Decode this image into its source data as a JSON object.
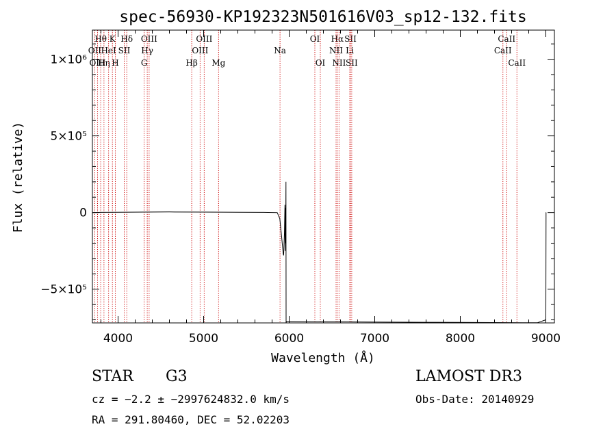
{
  "chart_data": {
    "type": "line",
    "title": "spec-56930-KP192323N501616V03_sp12-132.fits",
    "xlabel": "Wavelength (Å)",
    "ylabel": "Flux (relative)",
    "xlim": [
      3700,
      9100
    ],
    "ylim": [
      -720000,
      1190000
    ],
    "x_ticks": [
      {
        "value": 4000,
        "label": "4000"
      },
      {
        "value": 5000,
        "label": "5000"
      },
      {
        "value": 6000,
        "label": "6000"
      },
      {
        "value": 7000,
        "label": "7000"
      },
      {
        "value": 8000,
        "label": "8000"
      },
      {
        "value": 9000,
        "label": "9000"
      }
    ],
    "y_ticks": [
      {
        "value": 1000000,
        "label": "1×10⁶"
      },
      {
        "value": 500000,
        "label": "5×10⁵"
      },
      {
        "value": 0,
        "label": "0"
      },
      {
        "value": -500000,
        "label": "−5×10⁵"
      }
    ],
    "series": [
      {
        "name": "flux",
        "points": [
          [
            3700,
            0
          ],
          [
            3800,
            1000
          ],
          [
            4000,
            2000
          ],
          [
            4300,
            3000
          ],
          [
            4600,
            4000
          ],
          [
            5000,
            3000
          ],
          [
            5400,
            2000
          ],
          [
            5700,
            1000
          ],
          [
            5860,
            0
          ],
          [
            5890,
            -40000
          ],
          [
            5910,
            -150000
          ],
          [
            5930,
            -270000
          ],
          [
            5935,
            -280000
          ],
          [
            5945,
            -130000
          ],
          [
            5950,
            50000
          ],
          [
            5953,
            -250000
          ],
          [
            5956,
            30000
          ],
          [
            5958,
            -200000
          ],
          [
            5962,
            200000
          ],
          [
            5964,
            -720000
          ],
          [
            5968,
            -710000
          ],
          [
            6200,
            -712000
          ],
          [
            7000,
            -714000
          ],
          [
            7600,
            -716000
          ],
          [
            8000,
            -717000
          ],
          [
            8900,
            -719000
          ],
          [
            9000,
            -700000
          ],
          [
            9002,
            0
          ],
          [
            9005,
            0
          ]
        ]
      }
    ],
    "line_markers": [
      {
        "label": "Hθ",
        "wavelength": 3797,
        "row": 0
      },
      {
        "label": "OII",
        "wavelength": 3727,
        "row": 1
      },
      {
        "label": "OIII",
        "wavelength": 3760,
        "row": 2
      },
      {
        "label": "Hη",
        "wavelength": 3835,
        "row": 2
      },
      {
        "label": "HeI",
        "wavelength": 3889,
        "row": 1
      },
      {
        "label": "K",
        "wavelength": 3934,
        "row": 0
      },
      {
        "label": "H",
        "wavelength": 3968,
        "row": 2
      },
      {
        "label": "SII",
        "wavelength": 4072,
        "row": 1
      },
      {
        "label": "Hδ",
        "wavelength": 4102,
        "row": 0
      },
      {
        "label": "OIII",
        "wavelength": 4363,
        "row": 0
      },
      {
        "label": "Hγ",
        "wavelength": 4341,
        "row": 1
      },
      {
        "label": "G",
        "wavelength": 4305,
        "row": 2
      },
      {
        "label": "Hβ",
        "wavelength": 4861,
        "row": 2
      },
      {
        "label": "OIII",
        "wavelength": 5007,
        "row": 0
      },
      {
        "label": "OIII",
        "wavelength": 4959,
        "row": 1
      },
      {
        "label": "Mg",
        "wavelength": 5175,
        "row": 2
      },
      {
        "label": "Na",
        "wavelength": 5893,
        "row": 1
      },
      {
        "label": "OI",
        "wavelength": 6300,
        "row": 0
      },
      {
        "label": "OI",
        "wavelength": 6364,
        "row": 2
      },
      {
        "label": "Hα",
        "wavelength": 6563,
        "row": 0
      },
      {
        "label": "NII",
        "wavelength": 6548,
        "row": 1
      },
      {
        "label": "NII",
        "wavelength": 6583,
        "row": 2
      },
      {
        "label": "SII",
        "wavelength": 6716,
        "row": 0
      },
      {
        "label": "Li",
        "wavelength": 6708,
        "row": 1
      },
      {
        "label": "SII",
        "wavelength": 6731,
        "row": 2
      },
      {
        "label": "CaII",
        "wavelength": 8542,
        "row": 0
      },
      {
        "label": "CaII",
        "wavelength": 8498,
        "row": 1
      },
      {
        "label": "CaII",
        "wavelength": 8662,
        "row": 2
      }
    ],
    "colors": {
      "line": "#000000",
      "marker": "#cc0000",
      "axis": "#000000"
    }
  },
  "info": {
    "object_class": "STAR",
    "subclass": "G3",
    "survey": "LAMOST DR3",
    "redshift": "cz = −2.2 ± −2997624832.0 km/s",
    "obs_date": "Obs-Date: 20140929",
    "coords": "RA = 291.80460, DEC =  52.02203"
  }
}
